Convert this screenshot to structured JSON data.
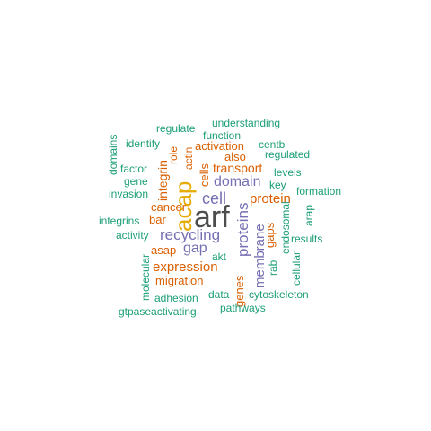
{
  "palette": {
    "dark": "#4d4d4d",
    "gold": "#E6AB02",
    "purple": "#7570B3",
    "orange": "#D95F02",
    "teal": "#1B9E77"
  },
  "words": [
    {
      "text": "arf",
      "color": "dark"
    },
    {
      "text": "acap",
      "color": "gold"
    },
    {
      "text": "cell",
      "color": "purple"
    },
    {
      "text": "domain",
      "color": "purple"
    },
    {
      "text": "recycling",
      "color": "purple"
    },
    {
      "text": "gap",
      "color": "purple"
    },
    {
      "text": "proteins",
      "color": "purple"
    },
    {
      "text": "membrane",
      "color": "purple"
    },
    {
      "text": "protein",
      "color": "orange"
    },
    {
      "text": "transport",
      "color": "orange"
    },
    {
      "text": "expression",
      "color": "orange"
    },
    {
      "text": "cells",
      "color": "orange"
    },
    {
      "text": "integrin",
      "color": "orange"
    },
    {
      "text": "cancer",
      "color": "orange"
    },
    {
      "text": "bar",
      "color": "orange"
    },
    {
      "text": "asap",
      "color": "orange"
    },
    {
      "text": "migration",
      "color": "orange"
    },
    {
      "text": "activation",
      "color": "orange"
    },
    {
      "text": "also",
      "color": "orange"
    },
    {
      "text": "actin",
      "color": "orange"
    },
    {
      "text": "role",
      "color": "orange"
    },
    {
      "text": "gaps",
      "color": "orange"
    },
    {
      "text": "genes",
      "color": "orange"
    },
    {
      "text": "understanding",
      "color": "teal"
    },
    {
      "text": "regulate",
      "color": "teal"
    },
    {
      "text": "function",
      "color": "teal"
    },
    {
      "text": "identify",
      "color": "teal"
    },
    {
      "text": "centb",
      "color": "teal"
    },
    {
      "text": "regulated",
      "color": "teal"
    },
    {
      "text": "domains",
      "color": "teal"
    },
    {
      "text": "factor",
      "color": "teal"
    },
    {
      "text": "levels",
      "color": "teal"
    },
    {
      "text": "gene",
      "color": "teal"
    },
    {
      "text": "key",
      "color": "teal"
    },
    {
      "text": "invasion",
      "color": "teal"
    },
    {
      "text": "formation",
      "color": "teal"
    },
    {
      "text": "integrins",
      "color": "teal"
    },
    {
      "text": "arap",
      "color": "teal"
    },
    {
      "text": "activity",
      "color": "teal"
    },
    {
      "text": "results",
      "color": "teal"
    },
    {
      "text": "endosomal",
      "color": "teal"
    },
    {
      "text": "akt",
      "color": "teal"
    },
    {
      "text": "rab",
      "color": "teal"
    },
    {
      "text": "cellular",
      "color": "teal"
    },
    {
      "text": "molecular",
      "color": "teal"
    },
    {
      "text": "adhesion",
      "color": "teal"
    },
    {
      "text": "data",
      "color": "teal"
    },
    {
      "text": "cytoskeleton",
      "color": "teal"
    },
    {
      "text": "gtpaseactivating",
      "color": "teal"
    },
    {
      "text": "pathways",
      "color": "teal"
    }
  ]
}
